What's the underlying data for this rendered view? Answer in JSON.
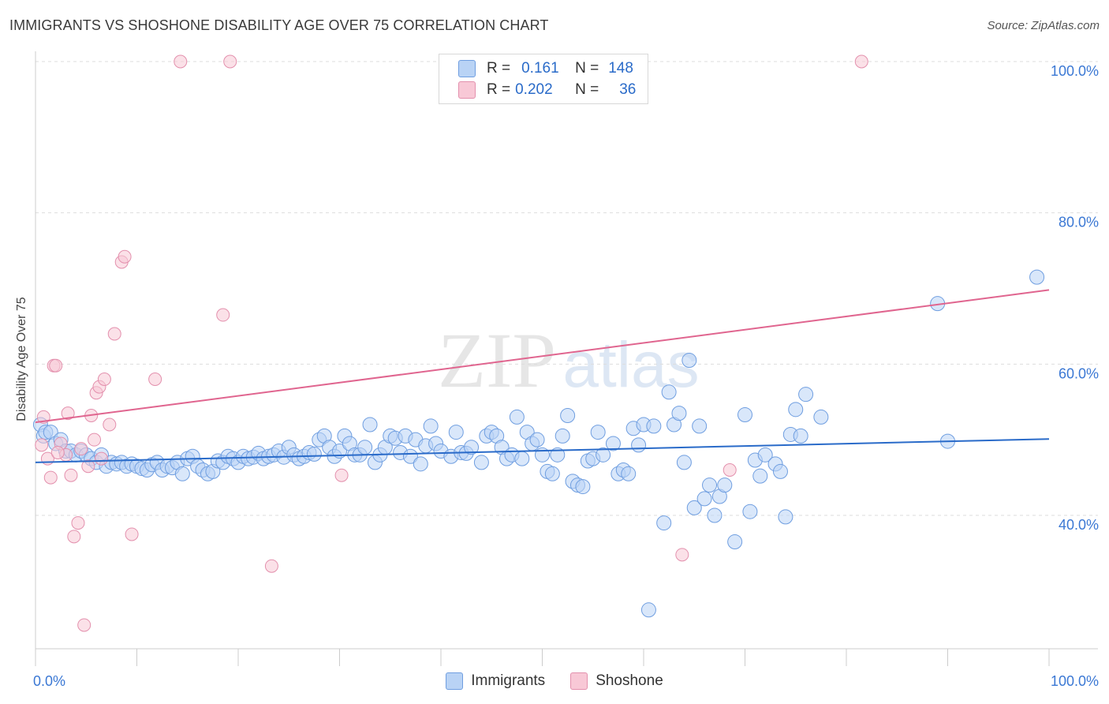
{
  "title": "IMMIGRANTS VS SHOSHONE DISABILITY AGE OVER 75 CORRELATION CHART",
  "source": "Source: ZipAtlas.com",
  "watermark": {
    "zip": "ZIP",
    "atlas": "atlas"
  },
  "legend": {
    "r_label": "R =",
    "n_label": "N =",
    "immigrants": {
      "r": "0.161",
      "n": "148"
    },
    "shoshone": {
      "r": "0.202",
      "n": "36"
    }
  },
  "colors": {
    "immigrants_fill": "#b9d3f5",
    "immigrants_stroke": "#6f9ee0",
    "immigrants_line": "#2a6bc9",
    "shoshone_fill": "#f8c8d6",
    "shoshone_stroke": "#e390ad",
    "shoshone_line": "#e0658f",
    "tick_label": "#3b78d4"
  },
  "chart_data": {
    "type": "scatter",
    "title": "IMMIGRANTS VS SHOSHONE DISABILITY AGE OVER 75 CORRELATION CHART",
    "xlabel": "",
    "ylabel": "Disability Age Over 75",
    "xlim": [
      0,
      100
    ],
    "ylim": [
      20,
      102
    ],
    "x_tick_labels": [
      {
        "value": 0,
        "label": "0.0%"
      },
      {
        "value": 100,
        "label": "100.0%"
      }
    ],
    "x_minor_ticks": [
      0,
      10,
      20,
      30,
      40,
      50,
      60,
      70,
      80,
      90,
      100
    ],
    "y_tick_labels": [
      {
        "value": 40,
        "label": "40.0%"
      },
      {
        "value": 60,
        "label": "60.0%"
      },
      {
        "value": 80,
        "label": "80.0%"
      },
      {
        "value": 100,
        "label": "100.0%"
      }
    ],
    "grid": "dashed horizontal",
    "series": [
      {
        "name": "Immigrants",
        "trend": {
          "x0": 0,
          "y0": 47.0,
          "x1": 100,
          "y1": 50.1
        },
        "points": [
          [
            0.5,
            52
          ],
          [
            0.8,
            50.5
          ],
          [
            1,
            51
          ],
          [
            1.5,
            51
          ],
          [
            2,
            49.5
          ],
          [
            2.5,
            50
          ],
          [
            3,
            48.5
          ],
          [
            3.5,
            48.5
          ],
          [
            4,
            48
          ],
          [
            4.5,
            48.5
          ],
          [
            5,
            48
          ],
          [
            5.5,
            47.5
          ],
          [
            6,
            47
          ],
          [
            6.5,
            48
          ],
          [
            7,
            46.5
          ],
          [
            7.5,
            47
          ],
          [
            8,
            46.8
          ],
          [
            8.5,
            47
          ],
          [
            9,
            46.5
          ],
          [
            9.5,
            46.8
          ],
          [
            10,
            46.5
          ],
          [
            10.5,
            46.2
          ],
          [
            11,
            46
          ],
          [
            11.5,
            46.7
          ],
          [
            12,
            47
          ],
          [
            12.5,
            46
          ],
          [
            13,
            46.5
          ],
          [
            13.5,
            46.3
          ],
          [
            14,
            47
          ],
          [
            14.5,
            45.5
          ],
          [
            15,
            47.5
          ],
          [
            15.5,
            47.8
          ],
          [
            16,
            46.5
          ],
          [
            16.5,
            46
          ],
          [
            17,
            45.5
          ],
          [
            17.5,
            45.8
          ],
          [
            18,
            47.2
          ],
          [
            18.5,
            47
          ],
          [
            19,
            47.8
          ],
          [
            19.5,
            47.5
          ],
          [
            20,
            47
          ],
          [
            20.5,
            47.8
          ],
          [
            21,
            47.5
          ],
          [
            21.5,
            47.7
          ],
          [
            22,
            48.2
          ],
          [
            22.5,
            47.5
          ],
          [
            23,
            47.8
          ],
          [
            23.5,
            48
          ],
          [
            24,
            48.5
          ],
          [
            24.5,
            47.7
          ],
          [
            25,
            49
          ],
          [
            25.5,
            48
          ],
          [
            26,
            47.5
          ],
          [
            26.5,
            47.8
          ],
          [
            27,
            48.3
          ],
          [
            27.5,
            48.1
          ],
          [
            28,
            50
          ],
          [
            28.5,
            50.5
          ],
          [
            29,
            49
          ],
          [
            29.5,
            47.8
          ],
          [
            30,
            48.5
          ],
          [
            30.5,
            50.5
          ],
          [
            31,
            49.5
          ],
          [
            31.5,
            48
          ],
          [
            32,
            48
          ],
          [
            32.5,
            49
          ],
          [
            33,
            52
          ],
          [
            33.5,
            47
          ],
          [
            34,
            48
          ],
          [
            34.5,
            49
          ],
          [
            35,
            50.5
          ],
          [
            35.5,
            50.2
          ],
          [
            36,
            48.3
          ],
          [
            36.5,
            50.5
          ],
          [
            37,
            47.8
          ],
          [
            37.5,
            50
          ],
          [
            38,
            46.8
          ],
          [
            38.5,
            49.2
          ],
          [
            39,
            51.8
          ],
          [
            39.5,
            49.5
          ],
          [
            40,
            48.5
          ],
          [
            41,
            47.8
          ],
          [
            41.5,
            51
          ],
          [
            42,
            48.3
          ],
          [
            42.5,
            48.2
          ],
          [
            43,
            49
          ],
          [
            44,
            47
          ],
          [
            44.5,
            50.5
          ],
          [
            45,
            51
          ],
          [
            45.5,
            50.5
          ],
          [
            46,
            49
          ],
          [
            46.5,
            47.5
          ],
          [
            47,
            48
          ],
          [
            47.5,
            53
          ],
          [
            48,
            47.5
          ],
          [
            48.5,
            51
          ],
          [
            49,
            49.5
          ],
          [
            49.5,
            50
          ],
          [
            50,
            48
          ],
          [
            50.5,
            45.8
          ],
          [
            51,
            45.5
          ],
          [
            51.5,
            48
          ],
          [
            52,
            50.5
          ],
          [
            52.5,
            53.2
          ],
          [
            53,
            44.5
          ],
          [
            53.5,
            44
          ],
          [
            54,
            43.8
          ],
          [
            54.5,
            47.2
          ],
          [
            55,
            47.5
          ],
          [
            55.5,
            51
          ],
          [
            56,
            48
          ],
          [
            57,
            49.5
          ],
          [
            57.5,
            45.5
          ],
          [
            58,
            46
          ],
          [
            58.5,
            45.5
          ],
          [
            59,
            51.5
          ],
          [
            59.5,
            49.3
          ],
          [
            60,
            52
          ],
          [
            60.5,
            27.5
          ],
          [
            61,
            51.8
          ],
          [
            62,
            39
          ],
          [
            62.5,
            56.3
          ],
          [
            63,
            52
          ],
          [
            63.5,
            53.5
          ],
          [
            64,
            47
          ],
          [
            64.5,
            60.5
          ],
          [
            65,
            41
          ],
          [
            65.5,
            51.8
          ],
          [
            66,
            42.2
          ],
          [
            66.5,
            44
          ],
          [
            67,
            40
          ],
          [
            67.5,
            42.5
          ],
          [
            68,
            44
          ],
          [
            69,
            36.5
          ],
          [
            70,
            53.3
          ],
          [
            70.5,
            40.5
          ],
          [
            71,
            47.3
          ],
          [
            71.5,
            45.2
          ],
          [
            72,
            48
          ],
          [
            73,
            46.8
          ],
          [
            73.5,
            45.8
          ],
          [
            74,
            39.8
          ],
          [
            74.5,
            50.7
          ],
          [
            75,
            54
          ],
          [
            75.5,
            50.5
          ],
          [
            76,
            56
          ],
          [
            77.5,
            53
          ],
          [
            89,
            68
          ],
          [
            90,
            49.8
          ],
          [
            98.8,
            71.5
          ]
        ]
      },
      {
        "name": "Shoshone",
        "trend": {
          "x0": 0,
          "y0": 52.3,
          "x1": 100,
          "y1": 69.8
        },
        "points": [
          [
            0.6,
            49.3
          ],
          [
            0.8,
            53
          ],
          [
            1.2,
            47.5
          ],
          [
            1.5,
            45
          ],
          [
            1.8,
            59.8
          ],
          [
            2,
            59.8
          ],
          [
            2.5,
            49.5
          ],
          [
            3,
            48
          ],
          [
            3.2,
            53.5
          ],
          [
            3.5,
            45.3
          ],
          [
            3.8,
            37.2
          ],
          [
            4.2,
            39
          ],
          [
            4.8,
            25.5
          ],
          [
            5.2,
            46.5
          ],
          [
            5.5,
            53.2
          ],
          [
            5.8,
            50
          ],
          [
            6,
            56.2
          ],
          [
            6.3,
            57
          ],
          [
            6.8,
            58
          ],
          [
            7.3,
            52
          ],
          [
            7.8,
            64
          ],
          [
            8.5,
            73.5
          ],
          [
            8.8,
            74.2
          ],
          [
            9.5,
            37.5
          ],
          [
            11.8,
            58
          ],
          [
            14.3,
            100
          ],
          [
            18.5,
            66.5
          ],
          [
            19.2,
            100
          ],
          [
            23.3,
            33.3
          ],
          [
            30.2,
            45.3
          ],
          [
            63.8,
            34.8
          ],
          [
            68.5,
            46
          ],
          [
            81.5,
            100
          ],
          [
            6.5,
            47.5
          ],
          [
            4.5,
            48.8
          ],
          [
            2.2,
            48.3
          ]
        ]
      }
    ]
  }
}
